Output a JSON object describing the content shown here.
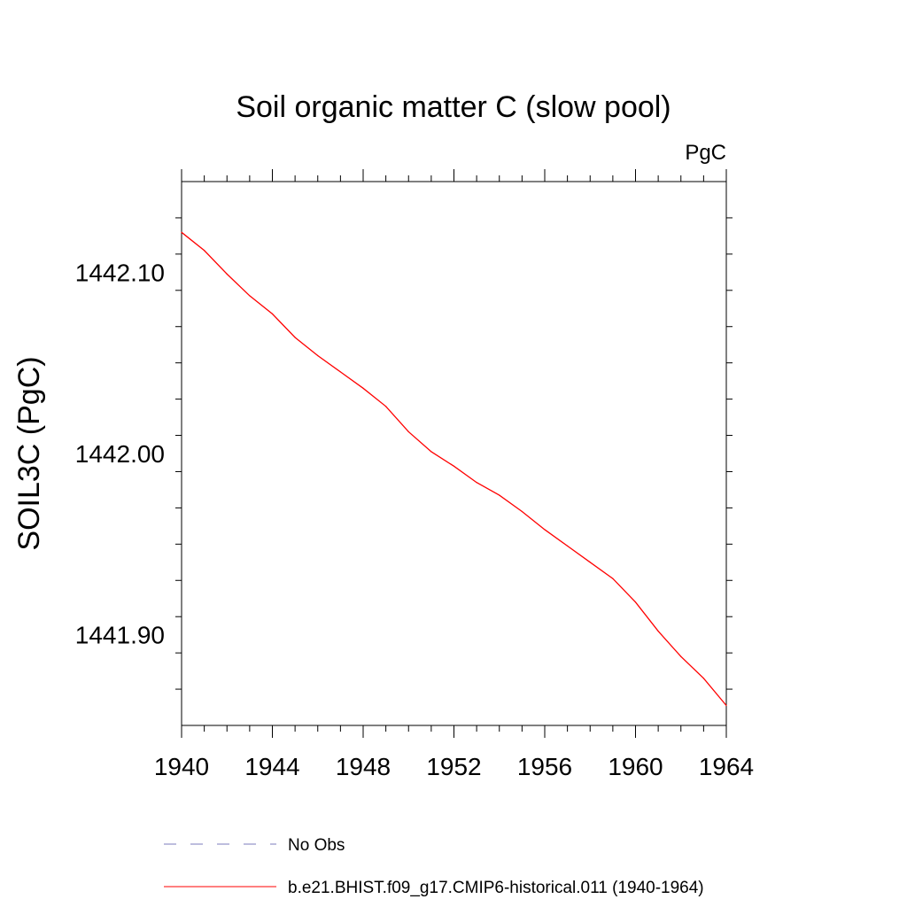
{
  "chart_data": {
    "type": "line",
    "title": "Soil organic matter C (slow pool)",
    "units_label": "PgC",
    "xlabel": "",
    "ylabel": "SOIL3C  (PgC)",
    "xlim": [
      1940,
      1964
    ],
    "ylim": [
      1441.85,
      1442.15
    ],
    "x_ticks": [
      "1940",
      "1944",
      "1948",
      "1952",
      "1956",
      "1960",
      "1964"
    ],
    "y_ticks": [
      "1441.90",
      "1442.00",
      "1442.10"
    ],
    "grid": false,
    "legend_position": "bottom",
    "legend": [
      {
        "label": "No Obs",
        "color": "#7b7bbd",
        "style": "dashed"
      },
      {
        "label": "b.e21.BHIST.f09_g17.CMIP6-historical.011 (1940-1964)",
        "color": "#ff0000",
        "style": "solid"
      }
    ],
    "series": [
      {
        "color": "#ff0000",
        "x": [
          1940,
          1941,
          1942,
          1943,
          1944,
          1945,
          1946,
          1947,
          1948,
          1949,
          1950,
          1951,
          1952,
          1953,
          1954,
          1955,
          1956,
          1957,
          1958,
          1959,
          1960,
          1961,
          1962,
          1963,
          1964
        ],
        "y": [
          1442.122,
          1442.112,
          1442.099,
          1442.087,
          1442.077,
          1442.064,
          1442.054,
          1442.045,
          1442.036,
          1442.026,
          1442.012,
          1442.001,
          1441.993,
          1441.984,
          1441.977,
          1441.968,
          1441.958,
          1441.949,
          1441.94,
          1441.931,
          1441.918,
          1441.902,
          1441.888,
          1441.876,
          1441.861
        ]
      }
    ]
  }
}
